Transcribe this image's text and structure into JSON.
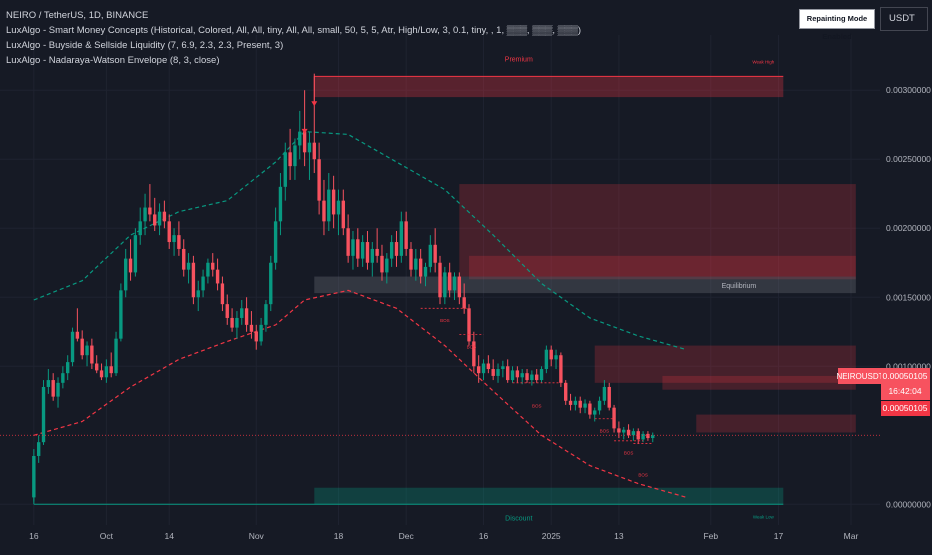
{
  "legend": {
    "symbol": "NEIRO / TetherUS, 1D, BINANCE",
    "indicators": [
      "LuxAlgo - Smart Money Concepts (Historical, Colored, All, All, tiny, All, All, small, 50, 5, 5, Atr, High/Low, 3, 0.1, tiny, , 1, ▒▒▒, ▒▒▒, ▒▒▒)",
      "LuxAlgo - Buyside & Sellside Liquidity (7, 6.9, 2.3, 2.3, Present, 3)",
      "LuxAlgo - Nadaraya-Watson Envelope (8, 3, close)"
    ]
  },
  "toolbar": {
    "repainting_label": "Repainting Mode Enabled",
    "currency_label": "USDT"
  },
  "price_tags": {
    "symbol_tag": "NEIROUSDT",
    "last_price": "0.00050105",
    "countdown": "16:42:04",
    "last_price_2": "0.00050105"
  },
  "chart_data": {
    "type": "candlestick",
    "y_ticks": [
      "0.00300000",
      "0.00250000",
      "0.00200000",
      "0.00150000",
      "0.00100000",
      "0.00000000"
    ],
    "y_tick_values": [
      0.003,
      0.0025,
      0.002,
      0.0015,
      0.001,
      0.0
    ],
    "ylim": [
      -0.00015,
      0.0034
    ],
    "x_ticks": [
      "16",
      "Oct",
      "14",
      "Nov",
      "18",
      "Dec",
      "16",
      "2025",
      "13",
      "Feb",
      "17",
      "Mar"
    ],
    "x_tick_days": [
      0,
      15,
      28,
      46,
      63,
      77,
      93,
      107,
      121,
      140,
      154,
      169
    ],
    "x_range_days": [
      -7,
      175
    ],
    "annotations": {
      "premium": "Premium",
      "weak_high": "Weak High",
      "equilibrium": "Equilibrium",
      "discount": "Discount",
      "weak_low": "Weak Low",
      "bos": "BOS"
    },
    "zones": {
      "premium": {
        "from_day": 58,
        "to_day": 155,
        "top": 0.0031,
        "bottom": 0.00295
      },
      "discount": {
        "from_day": 58,
        "to_day": 155,
        "top": 0.00012,
        "bottom": 0.0
      },
      "equilibrium": {
        "from_day": 58,
        "to_day": 170,
        "top": 0.00165,
        "bottom": 0.00153
      },
      "supply": [
        {
          "from_day": 88,
          "to_day": 170,
          "top": 0.00232,
          "bottom": 0.00165
        },
        {
          "from_day": 90,
          "to_day": 170,
          "top": 0.0018,
          "bottom": 0.00163
        },
        {
          "from_day": 116,
          "to_day": 170,
          "top": 0.00115,
          "bottom": 0.00088
        },
        {
          "from_day": 130,
          "to_day": 170,
          "top": 0.00093,
          "bottom": 0.00083
        },
        {
          "from_day": 137,
          "to_day": 170,
          "top": 0.00065,
          "bottom": 0.00052
        }
      ]
    },
    "envelope_upper": [
      [
        0,
        0.00148
      ],
      [
        10,
        0.00162
      ],
      [
        20,
        0.00195
      ],
      [
        30,
        0.00212
      ],
      [
        40,
        0.0022
      ],
      [
        50,
        0.00248
      ],
      [
        56,
        0.0027
      ],
      [
        65,
        0.00268
      ],
      [
        75,
        0.00248
      ],
      [
        85,
        0.00228
      ],
      [
        95,
        0.00195
      ],
      [
        105,
        0.0016
      ],
      [
        115,
        0.00135
      ],
      [
        125,
        0.00122
      ],
      [
        135,
        0.00112
      ]
    ],
    "envelope_lower": [
      [
        0,
        0.0005
      ],
      [
        10,
        0.0006
      ],
      [
        20,
        0.00085
      ],
      [
        30,
        0.00105
      ],
      [
        40,
        0.00118
      ],
      [
        50,
        0.0013
      ],
      [
        56,
        0.00148
      ],
      [
        65,
        0.00155
      ],
      [
        75,
        0.00142
      ],
      [
        85,
        0.00115
      ],
      [
        95,
        0.00082
      ],
      [
        105,
        0.0005
      ],
      [
        115,
        0.00028
      ],
      [
        125,
        0.00015
      ],
      [
        135,
        5e-05
      ]
    ],
    "candles": [
      {
        "day": 0,
        "o": 5e-05,
        "h": 0.0004,
        "l": 2e-05,
        "c": 0.00035
      },
      {
        "day": 1,
        "o": 0.00035,
        "h": 0.0005,
        "l": 0.0003,
        "c": 0.00045
      },
      {
        "day": 2,
        "o": 0.00045,
        "h": 0.0009,
        "l": 0.00043,
        "c": 0.00085
      },
      {
        "day": 3,
        "o": 0.00085,
        "h": 0.00098,
        "l": 0.0008,
        "c": 0.0009
      },
      {
        "day": 4,
        "o": 0.0009,
        "h": 0.00095,
        "l": 0.00075,
        "c": 0.00078
      },
      {
        "day": 5,
        "o": 0.00078,
        "h": 0.00092,
        "l": 0.0007,
        "c": 0.00088
      },
      {
        "day": 6,
        "o": 0.00088,
        "h": 0.001,
        "l": 0.00084,
        "c": 0.00095
      },
      {
        "day": 7,
        "o": 0.00095,
        "h": 0.00108,
        "l": 0.0009,
        "c": 0.00103
      },
      {
        "day": 8,
        "o": 0.00103,
        "h": 0.00128,
        "l": 0.001,
        "c": 0.00125
      },
      {
        "day": 9,
        "o": 0.00125,
        "h": 0.00142,
        "l": 0.00118,
        "c": 0.0012
      },
      {
        "day": 10,
        "o": 0.0012,
        "h": 0.00126,
        "l": 0.00105,
        "c": 0.00108
      },
      {
        "day": 11,
        "o": 0.00108,
        "h": 0.00118,
        "l": 0.001,
        "c": 0.00115
      },
      {
        "day": 12,
        "o": 0.00115,
        "h": 0.0012,
        "l": 0.00098,
        "c": 0.00102
      },
      {
        "day": 13,
        "o": 0.00102,
        "h": 0.00108,
        "l": 0.00095,
        "c": 0.00097
      },
      {
        "day": 14,
        "o": 0.00097,
        "h": 0.00102,
        "l": 0.0009,
        "c": 0.00092
      },
      {
        "day": 15,
        "o": 0.00092,
        "h": 0.00105,
        "l": 0.00088,
        "c": 0.001
      },
      {
        "day": 16,
        "o": 0.001,
        "h": 0.0011,
        "l": 0.00092,
        "c": 0.00095
      },
      {
        "day": 17,
        "o": 0.00095,
        "h": 0.00125,
        "l": 0.00093,
        "c": 0.0012
      },
      {
        "day": 18,
        "o": 0.0012,
        "h": 0.0016,
        "l": 0.00118,
        "c": 0.00155
      },
      {
        "day": 19,
        "o": 0.00155,
        "h": 0.00185,
        "l": 0.0015,
        "c": 0.00178
      },
      {
        "day": 20,
        "o": 0.00178,
        "h": 0.00192,
        "l": 0.00162,
        "c": 0.00168
      },
      {
        "day": 21,
        "o": 0.00168,
        "h": 0.002,
        "l": 0.00165,
        "c": 0.00195
      },
      {
        "day": 22,
        "o": 0.00195,
        "h": 0.00215,
        "l": 0.00188,
        "c": 0.00205
      },
      {
        "day": 23,
        "o": 0.00205,
        "h": 0.00225,
        "l": 0.00195,
        "c": 0.00215
      },
      {
        "day": 24,
        "o": 0.00215,
        "h": 0.00232,
        "l": 0.00205,
        "c": 0.0021
      },
      {
        "day": 25,
        "o": 0.0021,
        "h": 0.00222,
        "l": 0.00198,
        "c": 0.00202
      },
      {
        "day": 26,
        "o": 0.00202,
        "h": 0.00218,
        "l": 0.00195,
        "c": 0.00212
      },
      {
        "day": 27,
        "o": 0.00212,
        "h": 0.0022,
        "l": 0.002,
        "c": 0.00205
      },
      {
        "day": 28,
        "o": 0.00205,
        "h": 0.0021,
        "l": 0.00185,
        "c": 0.0019
      },
      {
        "day": 29,
        "o": 0.0019,
        "h": 0.002,
        "l": 0.0018,
        "c": 0.00195
      },
      {
        "day": 30,
        "o": 0.00195,
        "h": 0.00205,
        "l": 0.0018,
        "c": 0.00185
      },
      {
        "day": 31,
        "o": 0.00185,
        "h": 0.00192,
        "l": 0.00165,
        "c": 0.0017
      },
      {
        "day": 32,
        "o": 0.0017,
        "h": 0.00182,
        "l": 0.0016,
        "c": 0.00175
      },
      {
        "day": 33,
        "o": 0.00175,
        "h": 0.0018,
        "l": 0.00145,
        "c": 0.0015
      },
      {
        "day": 34,
        "o": 0.0015,
        "h": 0.00162,
        "l": 0.0014,
        "c": 0.00155
      },
      {
        "day": 35,
        "o": 0.00155,
        "h": 0.0017,
        "l": 0.0015,
        "c": 0.00165
      },
      {
        "day": 36,
        "o": 0.00165,
        "h": 0.00178,
        "l": 0.0016,
        "c": 0.00175
      },
      {
        "day": 37,
        "o": 0.00175,
        "h": 0.00182,
        "l": 0.00165,
        "c": 0.0017
      },
      {
        "day": 38,
        "o": 0.0017,
        "h": 0.00178,
        "l": 0.00155,
        "c": 0.0016
      },
      {
        "day": 39,
        "o": 0.0016,
        "h": 0.00165,
        "l": 0.0014,
        "c": 0.00145
      },
      {
        "day": 40,
        "o": 0.00145,
        "h": 0.00152,
        "l": 0.0013,
        "c": 0.00135
      },
      {
        "day": 41,
        "o": 0.00135,
        "h": 0.00142,
        "l": 0.00125,
        "c": 0.00128
      },
      {
        "day": 42,
        "o": 0.00128,
        "h": 0.0014,
        "l": 0.0012,
        "c": 0.00135
      },
      {
        "day": 43,
        "o": 0.00135,
        "h": 0.00148,
        "l": 0.0013,
        "c": 0.00142
      },
      {
        "day": 44,
        "o": 0.00142,
        "h": 0.0015,
        "l": 0.00125,
        "c": 0.0013
      },
      {
        "day": 45,
        "o": 0.0013,
        "h": 0.0014,
        "l": 0.0012,
        "c": 0.00125
      },
      {
        "day": 46,
        "o": 0.00125,
        "h": 0.0013,
        "l": 0.00112,
        "c": 0.00118
      },
      {
        "day": 47,
        "o": 0.00118,
        "h": 0.00135,
        "l": 0.00115,
        "c": 0.0013
      },
      {
        "day": 48,
        "o": 0.0013,
        "h": 0.00148,
        "l": 0.00125,
        "c": 0.00145
      },
      {
        "day": 49,
        "o": 0.00145,
        "h": 0.0018,
        "l": 0.0014,
        "c": 0.00175
      },
      {
        "day": 50,
        "o": 0.00175,
        "h": 0.00215,
        "l": 0.0017,
        "c": 0.00205
      },
      {
        "day": 51,
        "o": 0.00205,
        "h": 0.0024,
        "l": 0.00195,
        "c": 0.0023
      },
      {
        "day": 52,
        "o": 0.0023,
        "h": 0.00262,
        "l": 0.0022,
        "c": 0.00255
      },
      {
        "day": 53,
        "o": 0.00255,
        "h": 0.00272,
        "l": 0.00235,
        "c": 0.00245
      },
      {
        "day": 54,
        "o": 0.00245,
        "h": 0.00265,
        "l": 0.00235,
        "c": 0.0026
      },
      {
        "day": 55,
        "o": 0.0026,
        "h": 0.00285,
        "l": 0.0025,
        "c": 0.0027
      },
      {
        "day": 56,
        "o": 0.0027,
        "h": 0.003,
        "l": 0.00245,
        "c": 0.00255
      },
      {
        "day": 57,
        "o": 0.00255,
        "h": 0.0027,
        "l": 0.00235,
        "c": 0.00262
      },
      {
        "day": 58,
        "o": 0.00262,
        "h": 0.00312,
        "l": 0.0024,
        "c": 0.0025
      },
      {
        "day": 59,
        "o": 0.0025,
        "h": 0.00262,
        "l": 0.0021,
        "c": 0.0022
      },
      {
        "day": 60,
        "o": 0.0022,
        "h": 0.00235,
        "l": 0.00195,
        "c": 0.00205
      },
      {
        "day": 61,
        "o": 0.00205,
        "h": 0.0024,
        "l": 0.00198,
        "c": 0.00228
      },
      {
        "day": 62,
        "o": 0.00228,
        "h": 0.00238,
        "l": 0.002,
        "c": 0.0021
      },
      {
        "day": 63,
        "o": 0.0021,
        "h": 0.00228,
        "l": 0.00195,
        "c": 0.0022
      },
      {
        "day": 64,
        "o": 0.0022,
        "h": 0.00228,
        "l": 0.00195,
        "c": 0.002
      },
      {
        "day": 65,
        "o": 0.002,
        "h": 0.0021,
        "l": 0.00175,
        "c": 0.0018
      },
      {
        "day": 66,
        "o": 0.0018,
        "h": 0.00198,
        "l": 0.0017,
        "c": 0.00192
      },
      {
        "day": 67,
        "o": 0.00192,
        "h": 0.002,
        "l": 0.00172,
        "c": 0.00178
      },
      {
        "day": 68,
        "o": 0.00178,
        "h": 0.00195,
        "l": 0.00172,
        "c": 0.0019
      },
      {
        "day": 69,
        "o": 0.0019,
        "h": 0.00198,
        "l": 0.0017,
        "c": 0.00175
      },
      {
        "day": 70,
        "o": 0.00175,
        "h": 0.0019,
        "l": 0.00165,
        "c": 0.00185
      },
      {
        "day": 71,
        "o": 0.00185,
        "h": 0.002,
        "l": 0.00175,
        "c": 0.0018
      },
      {
        "day": 72,
        "o": 0.0018,
        "h": 0.00188,
        "l": 0.00162,
        "c": 0.00168
      },
      {
        "day": 73,
        "o": 0.00168,
        "h": 0.00182,
        "l": 0.0016,
        "c": 0.00178
      },
      {
        "day": 74,
        "o": 0.00178,
        "h": 0.00195,
        "l": 0.00172,
        "c": 0.0019
      },
      {
        "day": 75,
        "o": 0.0019,
        "h": 0.00198,
        "l": 0.00172,
        "c": 0.0018
      },
      {
        "day": 76,
        "o": 0.0018,
        "h": 0.00212,
        "l": 0.00175,
        "c": 0.00205
      },
      {
        "day": 77,
        "o": 0.00205,
        "h": 0.00212,
        "l": 0.0018,
        "c": 0.00185
      },
      {
        "day": 78,
        "o": 0.00185,
        "h": 0.0019,
        "l": 0.00165,
        "c": 0.0017
      },
      {
        "day": 79,
        "o": 0.0017,
        "h": 0.00185,
        "l": 0.00162,
        "c": 0.00178
      },
      {
        "day": 80,
        "o": 0.00178,
        "h": 0.00185,
        "l": 0.0016,
        "c": 0.00165
      },
      {
        "day": 81,
        "o": 0.00165,
        "h": 0.00175,
        "l": 0.00158,
        "c": 0.00172
      },
      {
        "day": 82,
        "o": 0.00172,
        "h": 0.00195,
        "l": 0.00168,
        "c": 0.00188
      },
      {
        "day": 83,
        "o": 0.00188,
        "h": 0.002,
        "l": 0.00168,
        "c": 0.00175
      },
      {
        "day": 84,
        "o": 0.00175,
        "h": 0.0018,
        "l": 0.00145,
        "c": 0.0015
      },
      {
        "day": 85,
        "o": 0.0015,
        "h": 0.00172,
        "l": 0.00145,
        "c": 0.00168
      },
      {
        "day": 86,
        "o": 0.00168,
        "h": 0.00175,
        "l": 0.0015,
        "c": 0.00155
      },
      {
        "day": 87,
        "o": 0.00155,
        "h": 0.00168,
        "l": 0.00148,
        "c": 0.00165
      },
      {
        "day": 88,
        "o": 0.00165,
        "h": 0.00168,
        "l": 0.00145,
        "c": 0.0015
      },
      {
        "day": 89,
        "o": 0.0015,
        "h": 0.0016,
        "l": 0.00138,
        "c": 0.00142
      },
      {
        "day": 90,
        "o": 0.00142,
        "h": 0.00145,
        "l": 0.00115,
        "c": 0.00118
      },
      {
        "day": 91,
        "o": 0.00118,
        "h": 0.00125,
        "l": 0.00095,
        "c": 0.001
      },
      {
        "day": 92,
        "o": 0.001,
        "h": 0.00108,
        "l": 0.00088,
        "c": 0.00095
      },
      {
        "day": 93,
        "o": 0.00095,
        "h": 0.00105,
        "l": 0.0009,
        "c": 0.00102
      },
      {
        "day": 94,
        "o": 0.00102,
        "h": 0.00108,
        "l": 0.00095,
        "c": 0.00098
      },
      {
        "day": 95,
        "o": 0.00098,
        "h": 0.00105,
        "l": 0.0009,
        "c": 0.00093
      },
      {
        "day": 96,
        "o": 0.00093,
        "h": 0.00102,
        "l": 0.00088,
        "c": 0.00098
      },
      {
        "day": 97,
        "o": 0.00098,
        "h": 0.00104,
        "l": 0.00092,
        "c": 0.001
      },
      {
        "day": 98,
        "o": 0.001,
        "h": 0.00105,
        "l": 0.00088,
        "c": 0.0009
      },
      {
        "day": 99,
        "o": 0.0009,
        "h": 0.001,
        "l": 0.00088,
        "c": 0.00097
      },
      {
        "day": 100,
        "o": 0.00097,
        "h": 0.001,
        "l": 0.00088,
        "c": 0.00092
      },
      {
        "day": 101,
        "o": 0.00092,
        "h": 0.00098,
        "l": 0.00087,
        "c": 0.00095
      },
      {
        "day": 102,
        "o": 0.00095,
        "h": 0.00098,
        "l": 0.00088,
        "c": 0.0009
      },
      {
        "day": 103,
        "o": 0.0009,
        "h": 0.00097,
        "l": 0.00086,
        "c": 0.00094
      },
      {
        "day": 104,
        "o": 0.00094,
        "h": 0.00098,
        "l": 0.00088,
        "c": 0.0009
      },
      {
        "day": 105,
        "o": 0.0009,
        "h": 0.001,
        "l": 0.00088,
        "c": 0.00098
      },
      {
        "day": 106,
        "o": 0.00098,
        "h": 0.00115,
        "l": 0.00095,
        "c": 0.00112
      },
      {
        "day": 107,
        "o": 0.00112,
        "h": 0.00115,
        "l": 0.001,
        "c": 0.00105
      },
      {
        "day": 108,
        "o": 0.00105,
        "h": 0.00112,
        "l": 0.00098,
        "c": 0.00108
      },
      {
        "day": 109,
        "o": 0.00108,
        "h": 0.0011,
        "l": 0.00085,
        "c": 0.00088
      },
      {
        "day": 110,
        "o": 0.00088,
        "h": 0.0009,
        "l": 0.00072,
        "c": 0.00075
      },
      {
        "day": 111,
        "o": 0.00075,
        "h": 0.0008,
        "l": 0.00068,
        "c": 0.00072
      },
      {
        "day": 112,
        "o": 0.00072,
        "h": 0.00078,
        "l": 0.00068,
        "c": 0.00075
      },
      {
        "day": 113,
        "o": 0.00075,
        "h": 0.00078,
        "l": 0.00066,
        "c": 0.0007
      },
      {
        "day": 114,
        "o": 0.0007,
        "h": 0.00076,
        "l": 0.00066,
        "c": 0.00073
      },
      {
        "day": 115,
        "o": 0.00073,
        "h": 0.00075,
        "l": 0.00062,
        "c": 0.00065
      },
      {
        "day": 116,
        "o": 0.00065,
        "h": 0.0007,
        "l": 0.0006,
        "c": 0.00068
      },
      {
        "day": 117,
        "o": 0.00068,
        "h": 0.00078,
        "l": 0.00065,
        "c": 0.00075
      },
      {
        "day": 118,
        "o": 0.00075,
        "h": 0.0009,
        "l": 0.00072,
        "c": 0.00085
      },
      {
        "day": 119,
        "o": 0.00085,
        "h": 0.00088,
        "l": 0.00068,
        "c": 0.0007
      },
      {
        "day": 120,
        "o": 0.0007,
        "h": 0.00072,
        "l": 0.00052,
        "c": 0.00055
      },
      {
        "day": 121,
        "o": 0.00055,
        "h": 0.0006,
        "l": 0.00048,
        "c": 0.00052
      },
      {
        "day": 122,
        "o": 0.00052,
        "h": 0.00056,
        "l": 0.00047,
        "c": 0.00054
      },
      {
        "day": 123,
        "o": 0.00054,
        "h": 0.00058,
        "l": 0.00048,
        "c": 0.0005
      },
      {
        "day": 124,
        "o": 0.0005,
        "h": 0.00055,
        "l": 0.00046,
        "c": 0.00053
      },
      {
        "day": 125,
        "o": 0.00053,
        "h": 0.00055,
        "l": 0.00044,
        "c": 0.00047
      },
      {
        "day": 126,
        "o": 0.00047,
        "h": 0.00053,
        "l": 0.00045,
        "c": 0.00051
      },
      {
        "day": 127,
        "o": 0.00051,
        "h": 0.00053,
        "l": 0.00046,
        "c": 0.00048
      },
      {
        "day": 128,
        "o": 0.00048,
        "h": 0.00052,
        "l": 0.00045,
        "c": 0.0005
      }
    ]
  }
}
